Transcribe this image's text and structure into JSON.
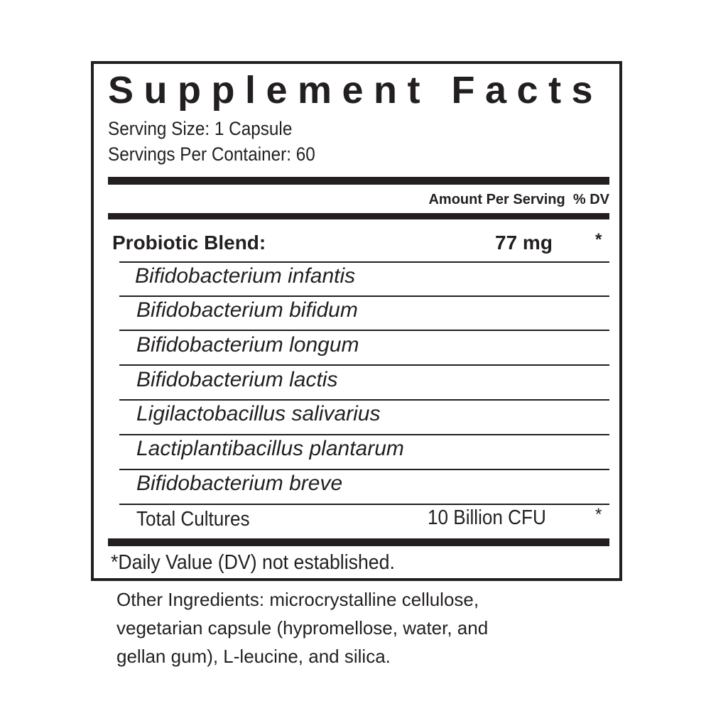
{
  "title": "Supplement Facts",
  "serving_size": "Serving Size: 1 Capsule",
  "servings_per_container": "Servings Per Container: 60",
  "header": {
    "amount": "Amount Per Serving",
    "dv": "% DV"
  },
  "blend": {
    "name": "Probiotic Blend:",
    "amount": "77 mg",
    "dv": "*"
  },
  "ingredients": [
    "Bifidobacterium infantis",
    "Bifidobacterium bifidum",
    "Bifidobacterium longum",
    "Bifidobacterium lactis",
    "Ligilactobacillus salivarius",
    "Lactiplantibacillus plantarum",
    "Bifidobacterium breve"
  ],
  "total": {
    "name": "Total Cultures",
    "amount": "10 Billion CFU",
    "dv": "*"
  },
  "footnote": "*Daily Value (DV) not established.",
  "other": [
    "Other Ingredients: microcrystalline cellulose,",
    "vegetarian capsule (hypromellose, water, and",
    "gellan gum), L-leucine, and silica."
  ]
}
